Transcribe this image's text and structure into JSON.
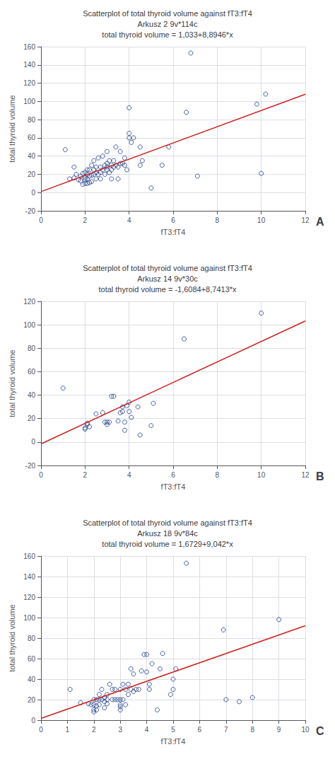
{
  "chart_data": [
    {
      "type": "scatter",
      "title": "Scatterplot of total thyroid volume against fT3:fT4\nArkusz 2 9v*114c\ntotal thyroid volume = 1,033+8,8946*x",
      "xlabel": "fT3:fT4",
      "ylabel": "total thyroid volume",
      "annotation": "A",
      "xlim": [
        0,
        12
      ],
      "ylim": [
        -20,
        160
      ],
      "xticks": [
        0,
        2,
        4,
        6,
        8,
        10,
        12
      ],
      "yticks": [
        -20,
        0,
        20,
        40,
        60,
        80,
        100,
        120,
        140,
        160
      ],
      "grid": true,
      "series": [
        {
          "type": "scatter",
          "color": "#1a3a8a",
          "marker": "circle",
          "x": [
            1.1,
            1.3,
            1.5,
            1.5,
            1.6,
            1.7,
            1.8,
            1.8,
            1.9,
            1.9,
            2.0,
            2.0,
            2.0,
            2.0,
            2.1,
            2.1,
            2.1,
            2.1,
            2.2,
            2.2,
            2.2,
            2.3,
            2.3,
            2.3,
            2.4,
            2.4,
            2.4,
            2.5,
            2.5,
            2.5,
            2.6,
            2.6,
            2.7,
            2.7,
            2.7,
            2.8,
            2.8,
            2.9,
            2.9,
            3.0,
            3.0,
            3.0,
            3.0,
            3.1,
            3.1,
            3.2,
            3.2,
            3.2,
            3.3,
            3.3,
            3.4,
            3.4,
            3.5,
            3.5,
            3.6,
            3.6,
            3.7,
            3.8,
            3.8,
            3.9,
            4.0,
            4.0,
            4.0,
            4.1,
            4.2,
            4.5,
            4.5,
            4.6,
            5.0,
            5.5,
            5.8,
            6.6,
            6.8,
            7.1,
            9.8,
            10.0,
            10.2
          ],
          "values": [
            47,
            15,
            16,
            28,
            20,
            14,
            13,
            18,
            9,
            21,
            10,
            14,
            16,
            22,
            10,
            15,
            20,
            25,
            11,
            18,
            25,
            12,
            19,
            30,
            20,
            25,
            35,
            15,
            22,
            28,
            20,
            38,
            15,
            22,
            28,
            25,
            40,
            20,
            30,
            25,
            28,
            32,
            45,
            22,
            35,
            15,
            25,
            30,
            28,
            35,
            30,
            50,
            15,
            28,
            32,
            45,
            32,
            30,
            38,
            25,
            60,
            65,
            93,
            55,
            60,
            30,
            50,
            35,
            5,
            30,
            50,
            88,
            153,
            18,
            97,
            21,
            108
          ]
        },
        {
          "type": "line",
          "color": "#cc2222",
          "line_style": "solid",
          "x": [
            0,
            12
          ],
          "values": [
            1.033,
            107.7682
          ]
        }
      ]
    },
    {
      "type": "scatter",
      "title": "Scatterplot of total thyroid volume against fT3:fT4\nArkusz 14 9v*30c\ntotal thyroid volume = -1,6084+8,7413*x",
      "xlabel": "fT3:fT4",
      "ylabel": "total thyroid volume",
      "annotation": "B",
      "xlim": [
        0,
        12
      ],
      "ylim": [
        -20,
        120
      ],
      "xticks": [
        0,
        2,
        4,
        6,
        8,
        10,
        12
      ],
      "yticks": [
        -20,
        0,
        20,
        40,
        60,
        80,
        100,
        120
      ],
      "grid": true,
      "series": [
        {
          "type": "scatter",
          "color": "#1a3a8a",
          "marker": "circle",
          "x": [
            1.0,
            2.0,
            2.0,
            2.1,
            2.1,
            2.2,
            2.5,
            2.8,
            2.9,
            3.0,
            3.0,
            3.1,
            3.2,
            3.3,
            3.5,
            3.6,
            3.7,
            3.7,
            3.8,
            3.8,
            3.9,
            4.0,
            4.0,
            4.1,
            4.4,
            4.5,
            5.0,
            5.1,
            6.5,
            10.0
          ],
          "values": [
            46,
            11,
            12,
            15,
            16,
            13,
            24,
            25,
            17,
            15,
            17,
            17,
            39,
            39,
            18,
            25,
            26,
            30,
            10,
            17,
            31,
            26,
            34,
            21,
            30,
            6,
            14,
            33,
            88,
            110
          ]
        },
        {
          "type": "line",
          "color": "#cc2222",
          "line_style": "solid",
          "x": [
            0,
            12
          ],
          "values": [
            -1.6084,
            103.2872
          ]
        }
      ]
    },
    {
      "type": "scatter",
      "title": "Scatterplot of total thyroid volume against fT3:fT4\nArkusz 18 9v*84c\ntotal thyroid volume = 1,6729+9,042*x",
      "xlabel": "fT3:fT4",
      "ylabel": "total thyroid volume",
      "annotation": "C",
      "xlim": [
        0,
        10
      ],
      "ylim": [
        0,
        160
      ],
      "xticks": [
        0,
        1,
        2,
        3,
        4,
        5,
        6,
        7,
        8,
        9,
        10
      ],
      "yticks": [
        0,
        20,
        40,
        60,
        80,
        100,
        120,
        140,
        160
      ],
      "grid": true,
      "series": [
        {
          "type": "scatter",
          "color": "#1a3a8a",
          "marker": "circle",
          "x": [
            1.1,
            1.5,
            1.8,
            1.9,
            2.0,
            2.0,
            2.0,
            2.0,
            2.1,
            2.1,
            2.1,
            2.2,
            2.2,
            2.2,
            2.3,
            2.3,
            2.4,
            2.4,
            2.4,
            2.5,
            2.5,
            2.5,
            2.6,
            2.7,
            2.7,
            2.8,
            2.8,
            2.9,
            3.0,
            3.0,
            3.0,
            3.0,
            3.0,
            3.1,
            3.1,
            3.2,
            3.2,
            3.3,
            3.3,
            3.4,
            3.4,
            3.5,
            3.5,
            3.6,
            3.7,
            3.8,
            3.9,
            4.0,
            4.0,
            4.1,
            4.1,
            4.2,
            4.4,
            4.5,
            4.6,
            4.9,
            5.0,
            5.0,
            5.1,
            5.5,
            6.9,
            7.0,
            7.5,
            8.0,
            9.0
          ],
          "values": [
            30,
            17,
            16,
            15,
            8,
            10,
            15,
            20,
            10,
            14,
            20,
            15,
            20,
            25,
            20,
            30,
            12,
            18,
            22,
            16,
            20,
            25,
            35,
            20,
            30,
            20,
            30,
            20,
            10,
            13,
            15,
            20,
            30,
            20,
            35,
            15,
            30,
            25,
            35,
            30,
            50,
            28,
            45,
            30,
            30,
            48,
            64,
            47,
            64,
            30,
            35,
            55,
            10,
            50,
            65,
            25,
            30,
            40,
            50,
            153,
            88,
            20,
            18,
            22,
            98
          ]
        },
        {
          "type": "line",
          "color": "#cc2222",
          "line_style": "solid",
          "x": [
            0,
            10
          ],
          "values": [
            1.6729,
            92.0929
          ]
        }
      ]
    }
  ]
}
